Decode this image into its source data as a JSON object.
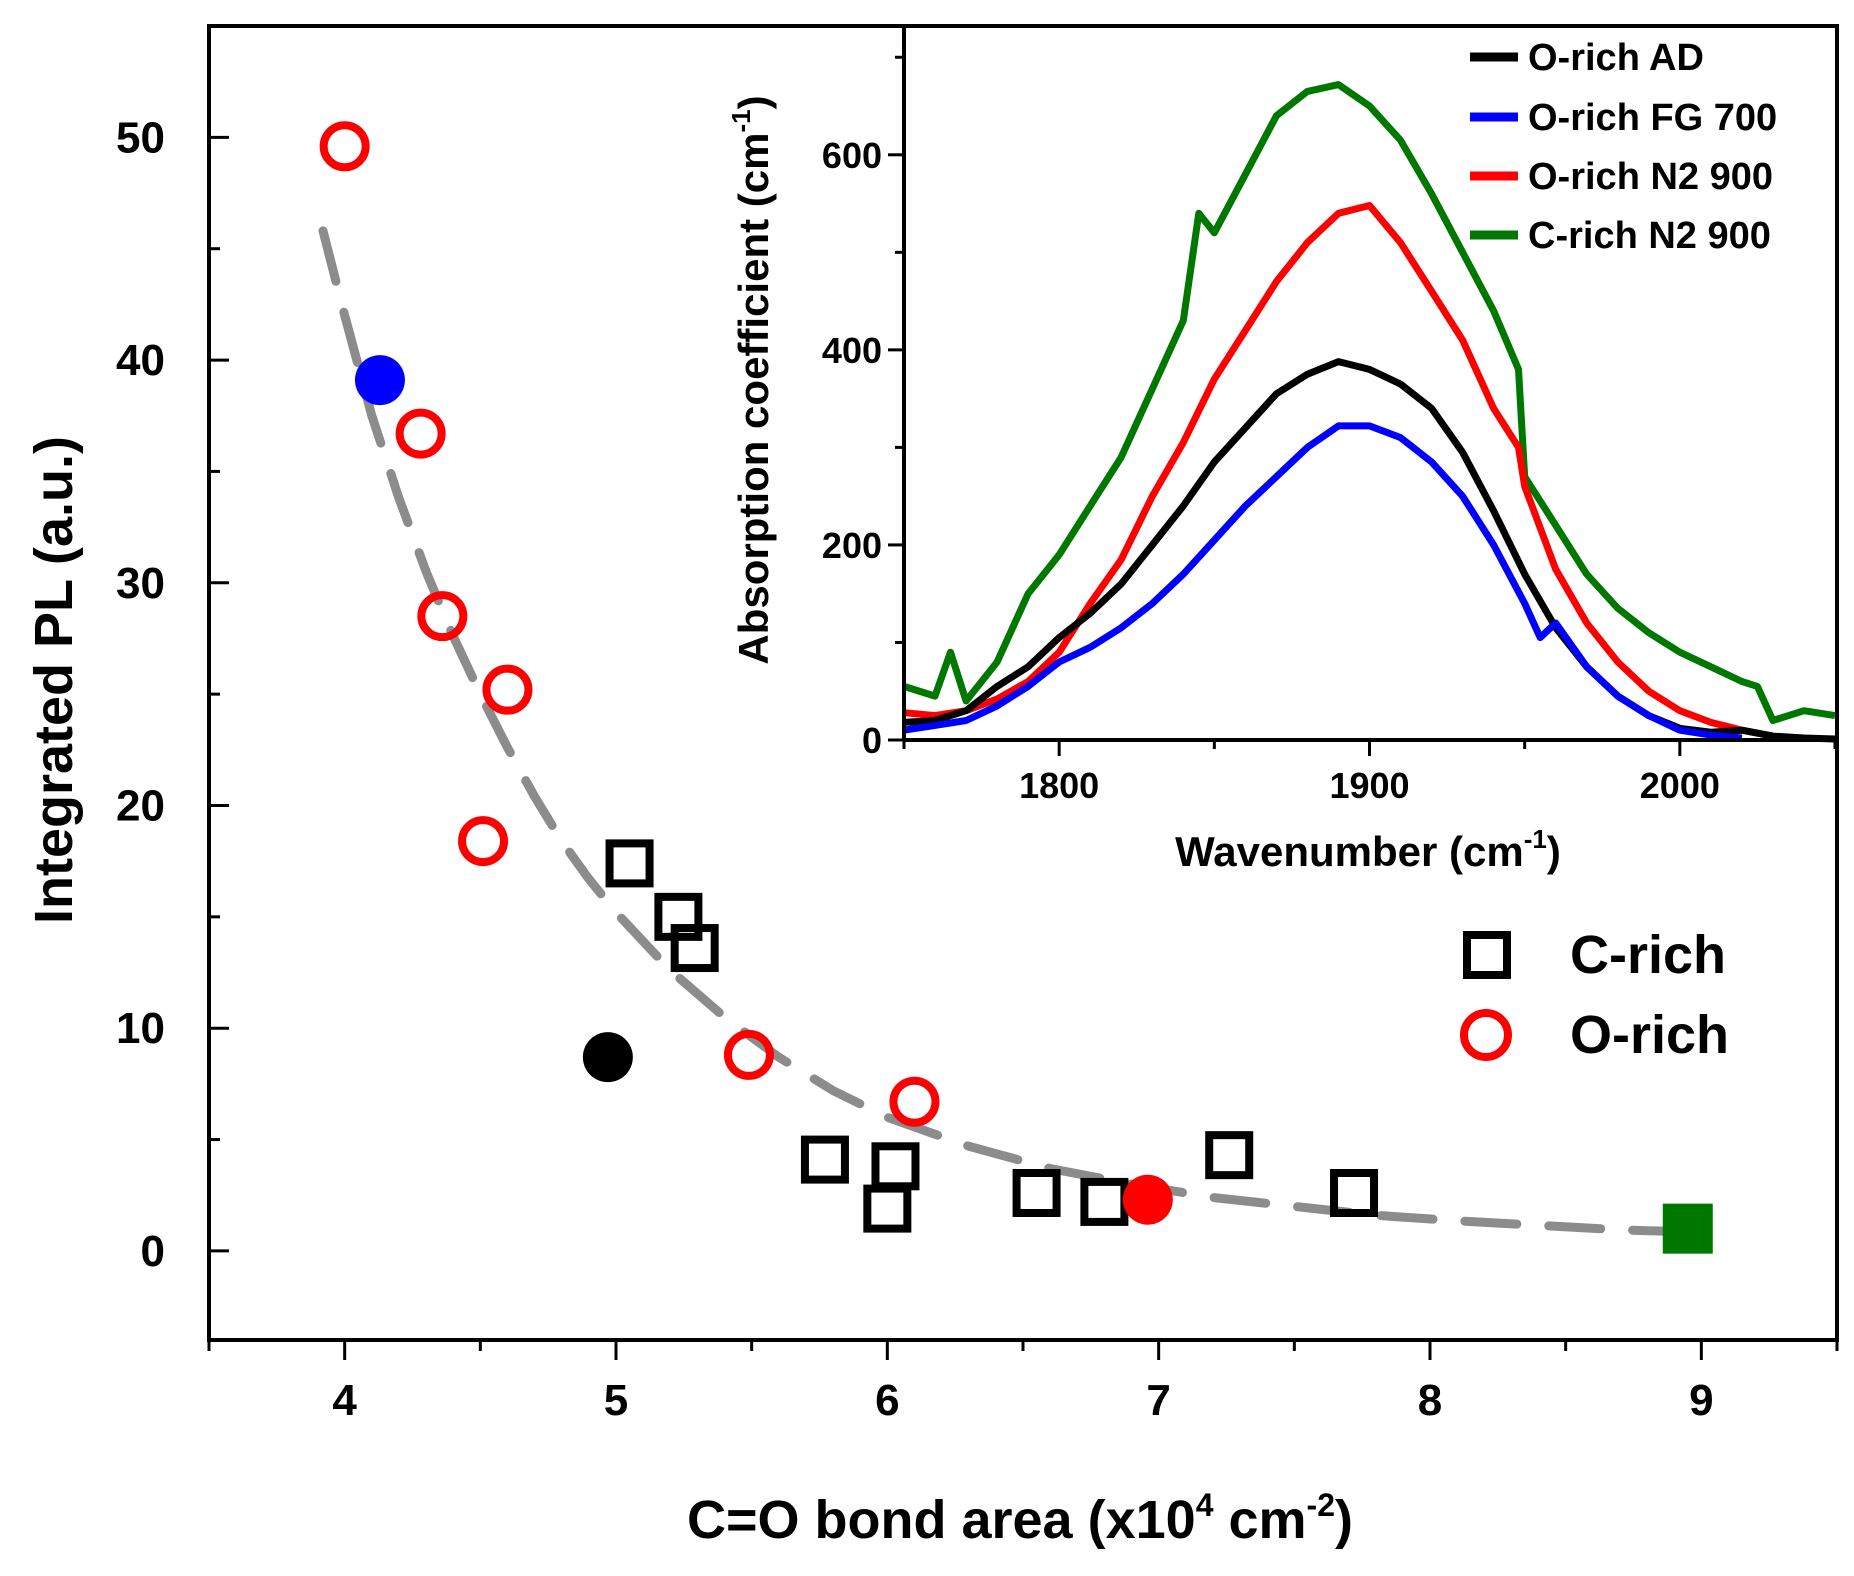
{
  "chart_data": [
    {
      "type": "scatter",
      "xlabel": "C=O bond area (x10",
      "xlabel_sup1": "4",
      "xlabel_mid": " cm",
      "xlabel_sup2": "-2",
      "xlabel_end": ")",
      "ylabel": "Integrated PL (a.u.)",
      "xlim": [
        3.5,
        9.5
      ],
      "ylim": [
        -4,
        55
      ],
      "xticks": [
        4,
        5,
        6,
        7,
        8,
        9
      ],
      "yticks": [
        0,
        10,
        20,
        30,
        40,
        50
      ],
      "legend_position": "right-middle",
      "series": [
        {
          "name": "C-rich",
          "marker": "open-square",
          "color": "#000000",
          "points": [
            [
              5.05,
              17.4
            ],
            [
              5.23,
              15.0
            ],
            [
              5.29,
              13.6
            ],
            [
              5.77,
              4.1
            ],
            [
              6.03,
              3.8
            ],
            [
              6.0,
              1.9
            ],
            [
              6.55,
              2.6
            ],
            [
              6.8,
              2.2
            ],
            [
              7.26,
              4.3
            ],
            [
              7.72,
              2.6
            ]
          ]
        },
        {
          "name": "O-rich",
          "marker": "open-circle",
          "color": "#ff0000",
          "points": [
            [
              4.0,
              49.6
            ],
            [
              4.28,
              36.7
            ],
            [
              4.36,
              28.5
            ],
            [
              4.6,
              25.2
            ],
            [
              4.51,
              18.4
            ],
            [
              5.49,
              8.8
            ],
            [
              6.1,
              6.7
            ]
          ]
        }
      ],
      "highlights": [
        {
          "name": "blue-filled-circle",
          "color": "#0000ff",
          "marker": "filled-circle",
          "x": 4.13,
          "y": 39.1
        },
        {
          "name": "black-filled-circle",
          "color": "#000000",
          "marker": "filled-circle",
          "x": 4.97,
          "y": 8.7
        },
        {
          "name": "red-filled-circle",
          "color": "#ff0000",
          "marker": "filled-circle",
          "x": 6.96,
          "y": 2.3
        },
        {
          "name": "green-filled-square",
          "color": "#007800",
          "marker": "filled-square",
          "x": 8.95,
          "y": 1.0
        }
      ],
      "fit_curve": {
        "style": "dashed",
        "color": "#8c8c8c",
        "x": [
          3.92,
          4.0,
          4.1,
          4.2,
          4.3,
          4.4,
          4.5,
          4.6,
          4.7,
          4.8,
          4.9,
          5.0,
          5.2,
          5.4,
          5.6,
          5.8,
          6.0,
          6.3,
          6.6,
          6.9,
          7.2,
          7.5,
          7.8,
          8.1,
          8.4,
          8.7,
          8.95
        ],
        "y": [
          45.8,
          42.0,
          37.5,
          33.8,
          30.5,
          27.6,
          25.0,
          22.6,
          20.4,
          18.4,
          16.7,
          15.2,
          12.6,
          10.5,
          8.7,
          7.2,
          6.0,
          4.7,
          3.7,
          3.0,
          2.4,
          2.0,
          1.6,
          1.35,
          1.15,
          0.95,
          0.85
        ]
      }
    },
    {
      "type": "line",
      "inset": true,
      "xlabel": "Wavenumber (cm",
      "xlabel_sup": "-1",
      "xlabel_end": ")",
      "ylabel": "Absorption coefficient (cm",
      "ylabel_sup": "-1",
      "ylabel_end": ")",
      "xlim": [
        1750,
        2050
      ],
      "ylim": [
        0,
        730
      ],
      "xticks": [
        1800,
        1900,
        2000
      ],
      "yticks": [
        0,
        200,
        400,
        600
      ],
      "legend_position": "top-right",
      "series": [
        {
          "name": "O-rich AD",
          "color": "#000000",
          "x": [
            1750,
            1760,
            1770,
            1780,
            1790,
            1800,
            1810,
            1820,
            1830,
            1840,
            1850,
            1860,
            1870,
            1880,
            1890,
            1900,
            1910,
            1920,
            1930,
            1940,
            1950,
            1960,
            1970,
            1980,
            1990,
            2000,
            2010,
            2020,
            2030,
            2040,
            2050
          ],
          "y": [
            18,
            20,
            30,
            55,
            75,
            105,
            130,
            160,
            200,
            240,
            285,
            320,
            355,
            375,
            388,
            380,
            365,
            340,
            295,
            235,
            170,
            115,
            75,
            45,
            25,
            12,
            8,
            10,
            4,
            2,
            1
          ]
        },
        {
          "name": "O-rich FG 700",
          "color": "#0000ff",
          "x": [
            1750,
            1760,
            1770,
            1780,
            1790,
            1800,
            1810,
            1820,
            1830,
            1840,
            1850,
            1860,
            1870,
            1880,
            1890,
            1900,
            1910,
            1920,
            1930,
            1940,
            1950,
            1955,
            1960,
            1970,
            1980,
            1990,
            2000,
            2010,
            2020
          ],
          "y": [
            10,
            15,
            20,
            35,
            55,
            80,
            95,
            115,
            140,
            170,
            205,
            240,
            270,
            300,
            322,
            322,
            310,
            285,
            250,
            200,
            140,
            105,
            120,
            75,
            45,
            25,
            10,
            5,
            2
          ]
        },
        {
          "name": "O-rich N2 900",
          "color": "#ff0000",
          "x": [
            1750,
            1760,
            1770,
            1780,
            1790,
            1800,
            1810,
            1820,
            1830,
            1840,
            1850,
            1860,
            1870,
            1880,
            1890,
            1900,
            1910,
            1920,
            1930,
            1940,
            1948,
            1950,
            1960,
            1970,
            1980,
            1990,
            2000,
            2010,
            2020,
            2030
          ],
          "y": [
            28,
            25,
            30,
            42,
            60,
            90,
            140,
            185,
            250,
            305,
            370,
            420,
            470,
            510,
            540,
            548,
            510,
            460,
            410,
            340,
            300,
            260,
            175,
            120,
            80,
            50,
            30,
            18,
            10,
            4
          ]
        },
        {
          "name": "C-rich N2 900",
          "color": "#007800",
          "x": [
            1750,
            1760,
            1765,
            1770,
            1780,
            1790,
            1795,
            1800,
            1810,
            1820,
            1830,
            1840,
            1845,
            1850,
            1860,
            1870,
            1880,
            1890,
            1900,
            1910,
            1920,
            1930,
            1940,
            1948,
            1950,
            1960,
            1970,
            1980,
            1990,
            2000,
            2010,
            2020,
            2025,
            2030,
            2040,
            2050
          ],
          "y": [
            55,
            45,
            90,
            40,
            80,
            150,
            170,
            190,
            240,
            290,
            360,
            430,
            540,
            520,
            580,
            640,
            665,
            672,
            650,
            615,
            560,
            500,
            440,
            380,
            270,
            220,
            170,
            135,
            110,
            90,
            75,
            60,
            55,
            20,
            30,
            25
          ]
        }
      ]
    }
  ]
}
